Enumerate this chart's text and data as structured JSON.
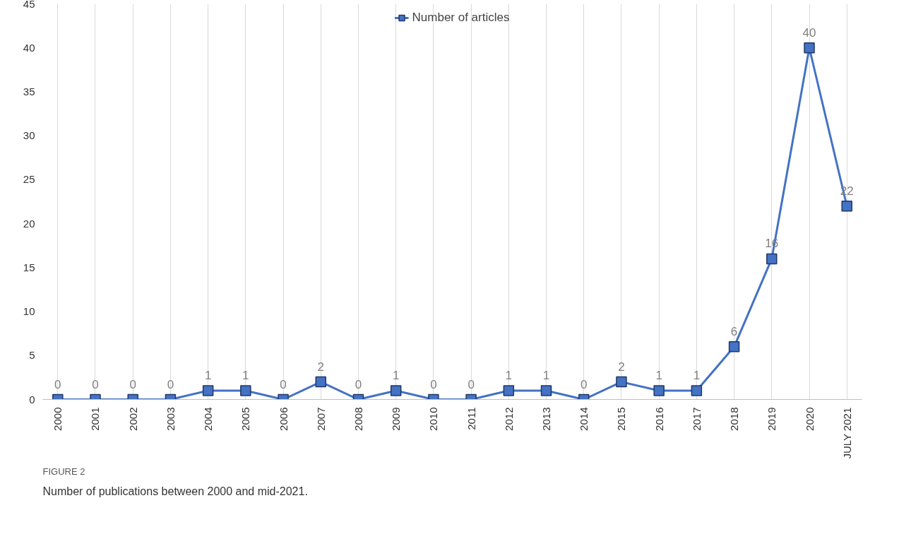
{
  "chart_data": {
    "type": "line",
    "categories": [
      "2000",
      "2001",
      "2002",
      "2003",
      "2004",
      "2005",
      "2006",
      "2007",
      "2008",
      "2009",
      "2010",
      "2011",
      "2012",
      "2013",
      "2014",
      "2015",
      "2016",
      "2017",
      "2018",
      "2019",
      "2020",
      "JULY 2021"
    ],
    "series": [
      {
        "name": "Number of articles",
        "color": "#4472c4",
        "values": [
          0,
          0,
          0,
          0,
          1,
          1,
          0,
          2,
          0,
          1,
          0,
          0,
          1,
          1,
          0,
          2,
          1,
          1,
          6,
          16,
          40,
          22
        ]
      }
    ],
    "ylim": [
      0,
      45
    ],
    "yticks": [
      0,
      5,
      10,
      15,
      20,
      25,
      30,
      35,
      40,
      45
    ],
    "grid": "x",
    "legend": "top",
    "marker": "square",
    "line_style": "solid",
    "data_labels": true,
    "annotations": [
      "FIGURE 2",
      "Number of publications between 2000 and mid-2021."
    ]
  }
}
